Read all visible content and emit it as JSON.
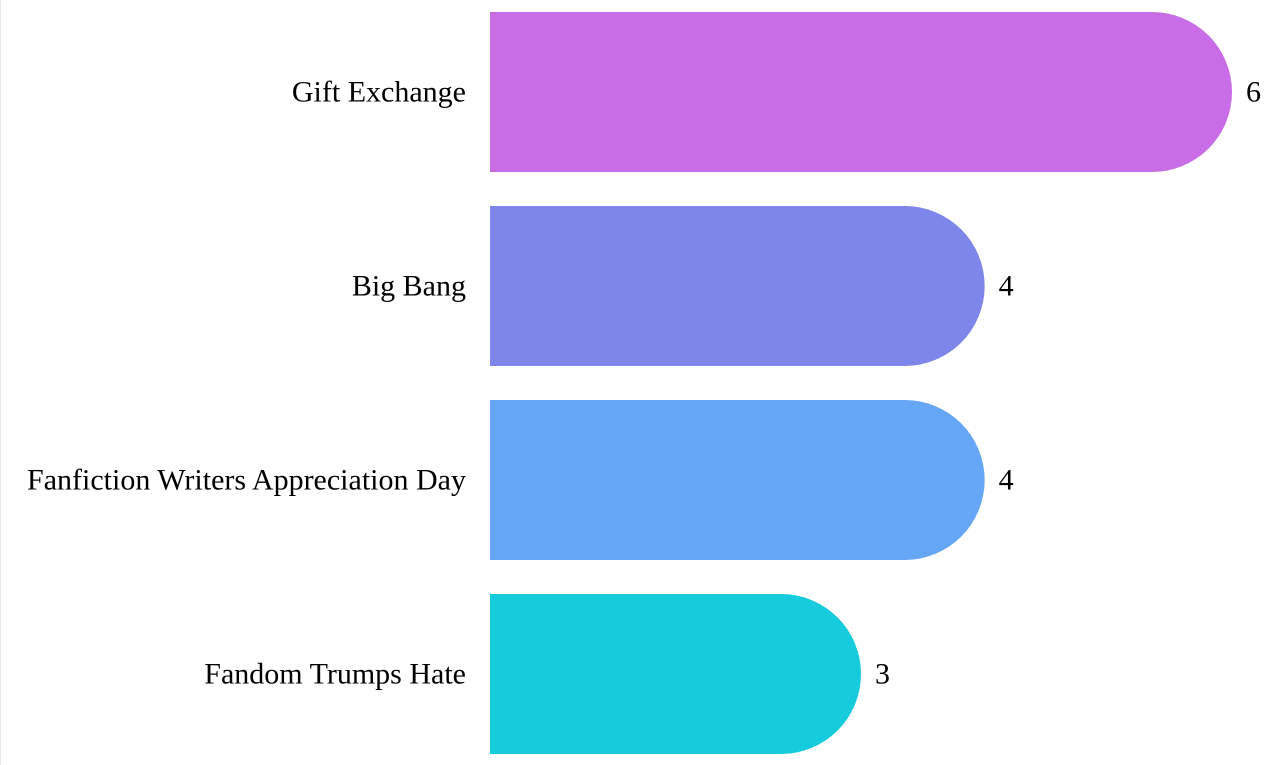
{
  "chart_data": {
    "type": "bar",
    "orientation": "horizontal",
    "categories": [
      "Gift Exchange",
      "Big Bang",
      "Fanfiction Writers Appreciation Day",
      "Fandom Trumps Hate"
    ],
    "values": [
      6,
      4,
      4,
      3
    ],
    "colors": [
      "#c86de6",
      "#7f86ea",
      "#65a7f6",
      "#16cbdc"
    ],
    "title": "",
    "xlabel": "",
    "ylabel": "",
    "xlim": [
      0,
      6
    ],
    "grid": false,
    "legend": "none",
    "value_labels": [
      "6",
      "4",
      "4",
      "3"
    ]
  }
}
